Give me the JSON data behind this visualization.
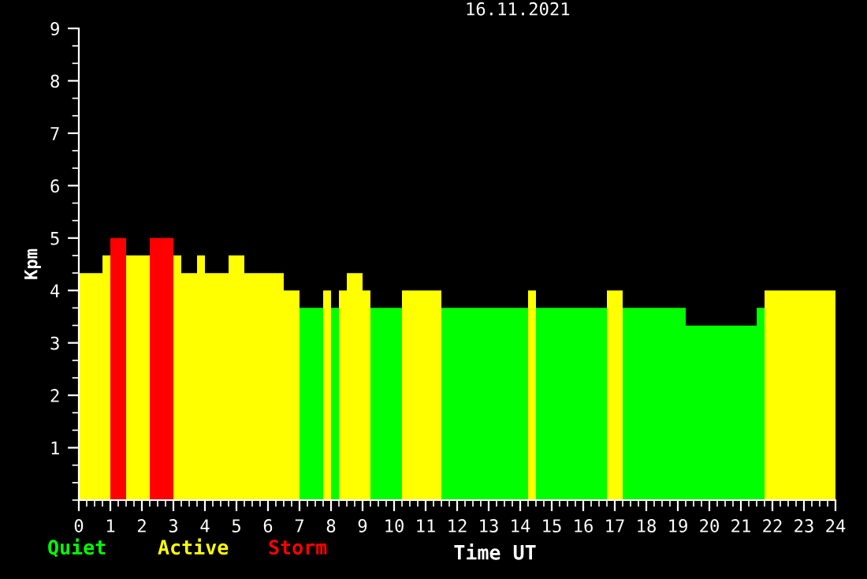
{
  "chart_data": {
    "type": "area",
    "title": "16.11.2021",
    "xlabel": "Time UT",
    "ylabel": "Kpm",
    "xlim": [
      0,
      24
    ],
    "xticks": [
      0,
      1,
      2,
      3,
      4,
      5,
      6,
      7,
      8,
      9,
      10,
      11,
      12,
      13,
      14,
      15,
      16,
      17,
      18,
      19,
      20,
      21,
      22,
      23,
      24
    ],
    "ylim": [
      0,
      9
    ],
    "yticks": [
      1,
      2,
      3,
      4,
      5,
      6,
      7,
      8,
      9
    ],
    "grid": false,
    "legend": "bottom",
    "series": [
      {
        "name": "Quiet",
        "color": "#00ff00",
        "x": [
          7,
          7.75
        ],
        "values": [
          3.67,
          3.67
        ]
      },
      {
        "name": "Active",
        "color": "#ffff00",
        "x": [
          0,
          0.75,
          0.75,
          1
        ],
        "values": [
          4.33,
          4.33,
          4.67,
          4.67
        ]
      },
      {
        "name": "Storm",
        "color": "#ff0000",
        "x": [
          1,
          1.5
        ],
        "values": [
          5,
          5
        ]
      },
      {
        "color": "#ff0000",
        "x": [
          2.25,
          3
        ],
        "values": [
          5,
          5
        ]
      },
      {
        "color": "#ffff00",
        "x": [
          1.5,
          2.25
        ],
        "values": [
          4.67,
          4.67
        ]
      },
      {
        "color": "#ffff00",
        "x": [
          3,
          3.25,
          3.25,
          3.75,
          3.75,
          4,
          4,
          4.75,
          4.75,
          5.25,
          5.25,
          6.5,
          6.5,
          7
        ],
        "values": [
          4.67,
          4.67,
          4.33,
          4.33,
          4.67,
          4.67,
          4.33,
          4.33,
          4.67,
          4.67,
          4.33,
          4.33,
          4,
          4
        ]
      },
      {
        "color": "#ffff00",
        "x": [
          7.75,
          8
        ],
        "values": [
          4,
          4
        ]
      },
      {
        "color": "#ffff00",
        "x": [
          8.25,
          8.5,
          8.5,
          9,
          9,
          9.25
        ],
        "values": [
          4,
          4,
          4.33,
          4.33,
          4,
          4
        ]
      },
      {
        "color": "#ffff00",
        "x": [
          10.25,
          11.5
        ],
        "values": [
          4,
          4
        ]
      },
      {
        "color": "#ffff00",
        "x": [
          14.25,
          14.5
        ],
        "values": [
          4,
          4
        ]
      },
      {
        "color": "#ffff00",
        "x": [
          16.75,
          17.25
        ],
        "values": [
          4,
          4
        ]
      },
      {
        "color": "#ffff00",
        "x": [
          21.75,
          24
        ],
        "values": [
          4,
          4
        ]
      },
      {
        "color": "#00ff00",
        "x": [
          8,
          8.25
        ],
        "values": [
          3.67,
          3.67
        ]
      },
      {
        "color": "#00ff00",
        "x": [
          9.25,
          10.25
        ],
        "values": [
          3.67,
          3.67
        ]
      },
      {
        "color": "#00ff00",
        "x": [
          11.5,
          14.25
        ],
        "values": [
          3.67,
          3.67
        ]
      },
      {
        "color": "#00ff00",
        "x": [
          14.5,
          16.75
        ],
        "values": [
          3.67,
          3.67
        ]
      },
      {
        "color": "#00ff00",
        "x": [
          17.25,
          19.25,
          19.25,
          21.5,
          21.5,
          21.75
        ],
        "values": [
          3.67,
          3.67,
          3.33,
          3.33,
          3.67,
          3.67
        ]
      }
    ]
  }
}
